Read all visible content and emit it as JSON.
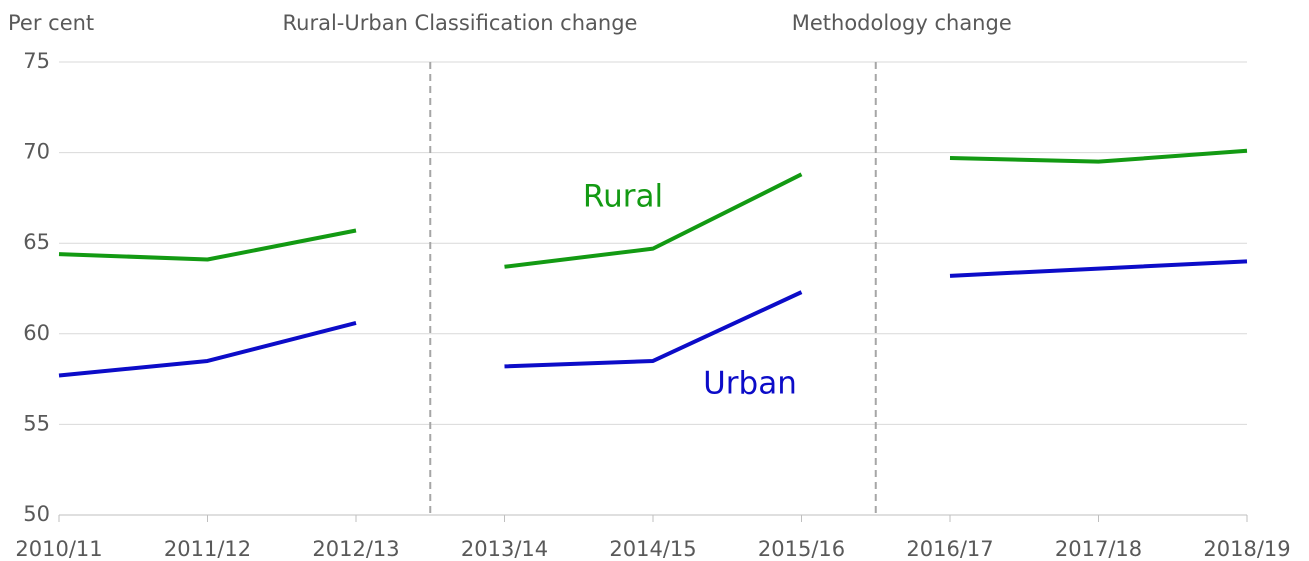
{
  "chart_data": {
    "type": "line",
    "y_label": "Per cent",
    "categories": [
      "2010/11",
      "2011/12",
      "2012/13",
      "2013/14",
      "2014/15",
      "2015/16",
      "2016/17",
      "2017/18",
      "2018/19"
    ],
    "series": [
      {
        "name": "Rural",
        "color": "#139a13",
        "values": [
          64.4,
          64.1,
          65.7,
          63.7,
          64.7,
          68.8,
          69.7,
          69.5,
          70.1
        ]
      },
      {
        "name": "Urban",
        "color": "#0c0cc8",
        "values": [
          57.7,
          58.5,
          60.6,
          58.2,
          58.5,
          62.3,
          63.2,
          63.6,
          64.0
        ]
      }
    ],
    "annotations": [
      {
        "text": "Rural-Urban Classification change",
        "after": "2012/13"
      },
      {
        "text": "Methodology change",
        "after": "2015/16"
      }
    ],
    "ylim": [
      50,
      75
    ],
    "yticks": [
      50,
      55,
      60,
      65,
      70,
      75
    ],
    "grid": true
  }
}
